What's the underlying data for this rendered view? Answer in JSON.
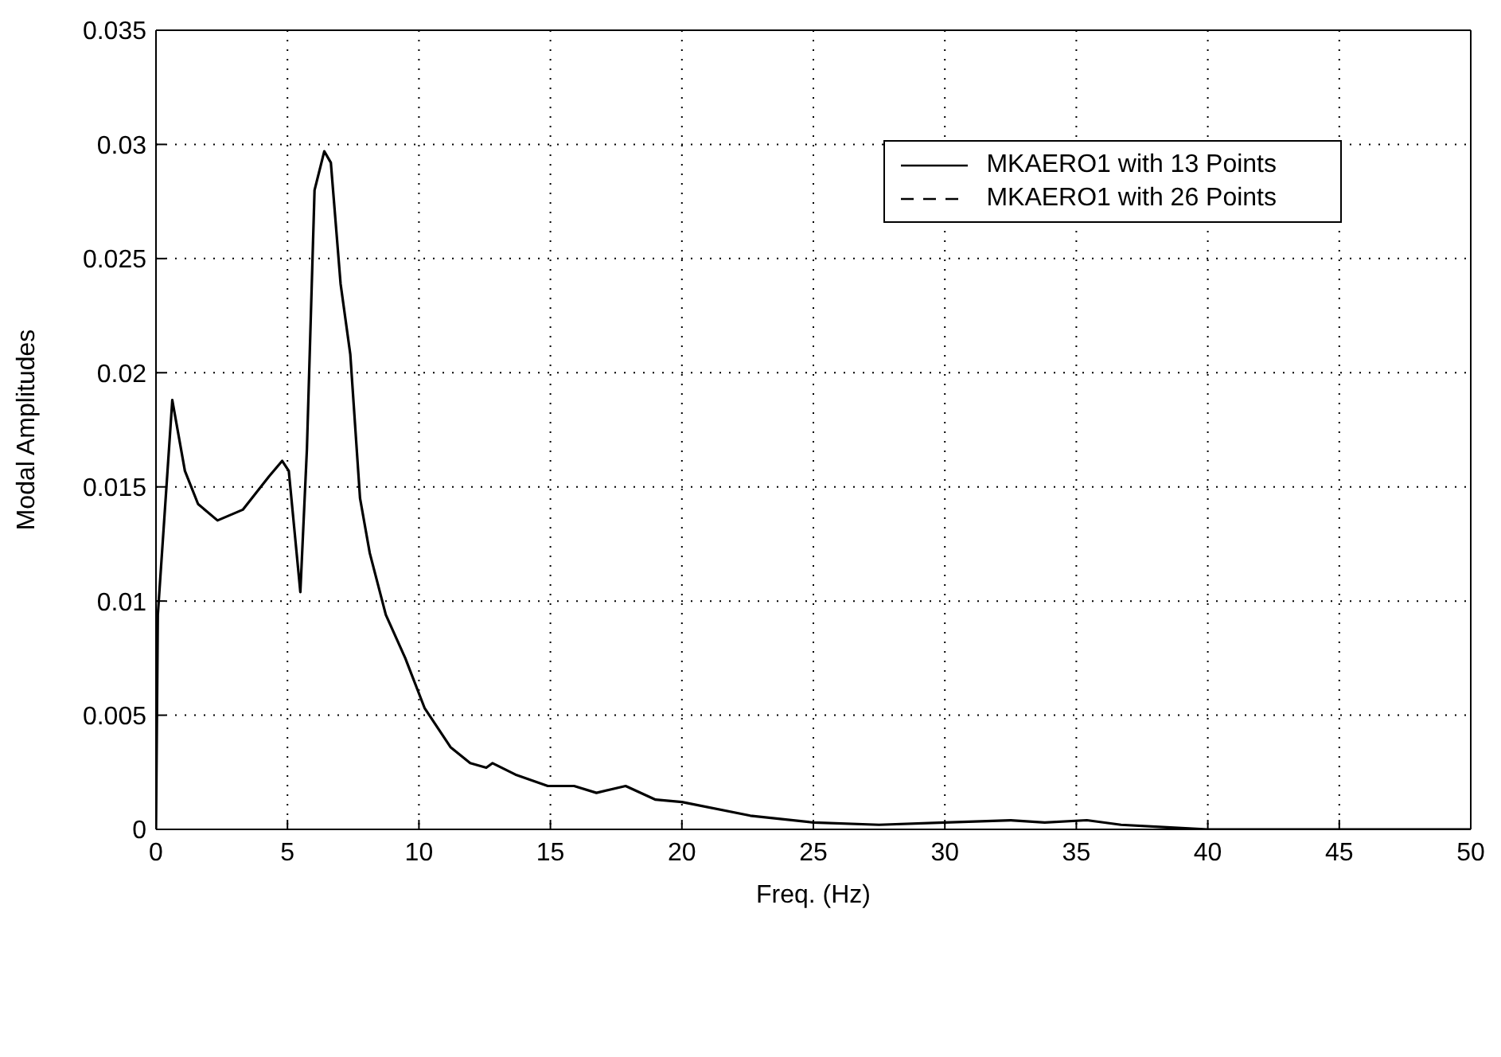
{
  "chart_data": {
    "type": "line",
    "xlabel": "Freq. (Hz)",
    "ylabel": "Modal Amplitudes",
    "x": [
      0,
      0.07,
      0.62,
      1.1,
      1.6,
      2.34,
      3.3,
      4.3,
      4.8,
      5.05,
      5.49,
      5.74,
      6.03,
      6.4,
      6.65,
      7.02,
      7.39,
      7.76,
      8.13,
      8.74,
      9.48,
      10.22,
      11.2,
      11.95,
      12.56,
      12.8,
      13.67,
      14.9,
      15.9,
      16.75,
      17.86,
      19,
      20,
      22.6,
      25,
      27.5,
      30,
      32.5,
      33.8,
      35.4,
      36.7,
      38.3,
      40,
      45,
      50
    ],
    "series": [
      {
        "name": "MKAERO1 with 13 Points",
        "color": "#000000",
        "line_style": "solid",
        "values": [
          0,
          0.0094,
          0.0188,
          0.0157,
          0.01425,
          0.01353,
          0.014,
          0.01546,
          0.01614,
          0.0157,
          0.01039,
          0.01667,
          0.028,
          0.0297,
          0.0292,
          0.0239,
          0.0208,
          0.0145,
          0.0121,
          0.0094,
          0.0075,
          0.0053,
          0.0036,
          0.0029,
          0.0027,
          0.0029,
          0.0024,
          0.0019,
          0.0019,
          0.0016,
          0.0019,
          0.0013,
          0.0012,
          0.0006,
          0.0003,
          0.0002,
          0.0003,
          0.0004,
          0.0003,
          0.0004,
          0.0002,
          0.0001,
          0,
          0,
          0
        ]
      },
      {
        "name": "MKAERO1 with 26 Points",
        "color": "#000000",
        "line_style": "dashed",
        "values": [
          null,
          null,
          null,
          null,
          null,
          null,
          null,
          null,
          null,
          null,
          null,
          null,
          null,
          null,
          null,
          null,
          null,
          null,
          null,
          null,
          null,
          null,
          null,
          null,
          null,
          null,
          null,
          null,
          null,
          null,
          null,
          null,
          null,
          null,
          null,
          null,
          null,
          null,
          null,
          null,
          null,
          null,
          null,
          null,
          null
        ]
      }
    ],
    "xlim": [
      0,
      50
    ],
    "xticks": [
      0,
      5,
      10,
      15,
      20,
      25,
      30,
      35,
      40,
      45,
      50
    ],
    "ylim": [
      0,
      0.035
    ],
    "yticks": [
      0,
      0.005,
      0.01,
      0.015,
      0.02,
      0.025,
      0.03,
      0.035
    ],
    "grid": true,
    "legend": "top right",
    "marker": "none"
  }
}
